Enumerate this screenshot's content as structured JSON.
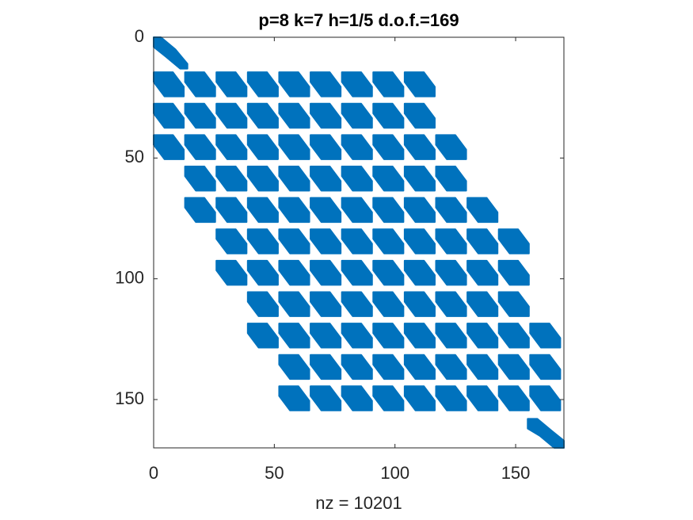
{
  "chart_data": {
    "type": "spy",
    "title": "p=8 k=7 h=1/5 d.o.f.=169",
    "xlabel": "nz = 10201",
    "color": "#0072bd",
    "xlim": [
      0,
      170
    ],
    "ylim": [
      0,
      170
    ],
    "xticks": [
      0,
      50,
      100,
      150
    ],
    "yticks": [
      0,
      50,
      100,
      150
    ],
    "y_reversed": true
  }
}
